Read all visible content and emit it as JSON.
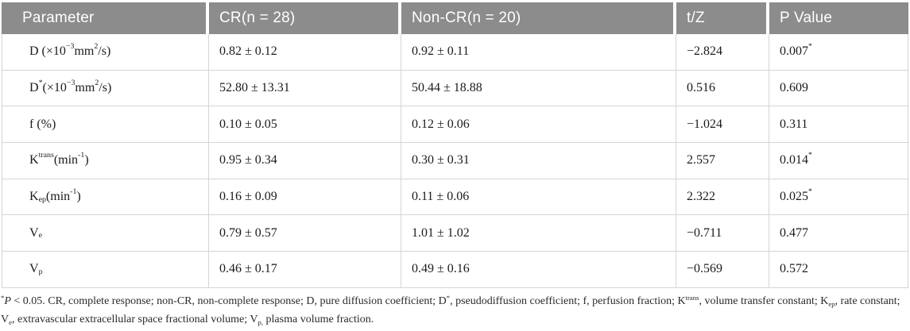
{
  "table": {
    "columns": [
      {
        "key": "parameter",
        "label": "Parameter"
      },
      {
        "key": "cr",
        "label": "CR(n = 28)"
      },
      {
        "key": "non_cr",
        "label": "Non-CR(n = 20)"
      },
      {
        "key": "t_z",
        "label": "t/Z"
      },
      {
        "key": "p_value",
        "label": "P Value"
      }
    ],
    "rows": [
      {
        "parameter": "D (×10^{−3} mm^{2}/s)",
        "cr": "0.82 ± 0.12",
        "non_cr": "0.92 ± 0.11",
        "t_z": "−2.824",
        "p_value": "0.007^{*}"
      },
      {
        "parameter": "D^{*}(×10^{−3} mm^{2}/s)",
        "cr": "52.80 ± 13.31",
        "non_cr": "50.44 ± 18.88",
        "t_z": "0.516",
        "p_value": "0.609"
      },
      {
        "parameter": "f (%)",
        "cr": "0.10 ± 0.05",
        "non_cr": "0.12 ± 0.06",
        "t_z": "−1.024",
        "p_value": "0.311"
      },
      {
        "parameter": "K^{trans} (min^{-1})",
        "cr": "0.95 ± 0.34",
        "non_cr": "0.30 ± 0.31",
        "t_z": "2.557",
        "p_value": "0.014^{*}"
      },
      {
        "parameter": "K_{ep} (min^{-1})",
        "cr": "0.16 ± 0.09",
        "non_cr": "0.11 ± 0.06",
        "t_z": "2.322",
        "p_value": "0.025^{*}"
      },
      {
        "parameter": "V_{e}",
        "cr": "0.79 ± 0.57",
        "non_cr": "1.01 ± 1.02",
        "t_z": "−0.711",
        "p_value": "0.477"
      },
      {
        "parameter": "V_{p}",
        "cr": "0.46 ± 0.17",
        "non_cr": "0.49 ± 0.16",
        "t_z": "−0.569",
        "p_value": "0.572"
      }
    ]
  },
  "footnote": "^{*}~{P} < 0.05. CR, complete response; non-CR, non-complete response; D, pure diffusion coefficient; D^{*}, pseudodiffusion coefficient; f, perfusion fraction; K^{trans}, volume transfer constant; K_{ep}, rate constant; V_{e}, extravascular extracellular space fractional volume; V_{p,} plasma volume fraction.",
  "colors": {
    "header_bg": "#8c8c8c",
    "header_text": "#ffffff",
    "body_text": "#1b1b1b",
    "grid_border": "#d5d5d5"
  }
}
